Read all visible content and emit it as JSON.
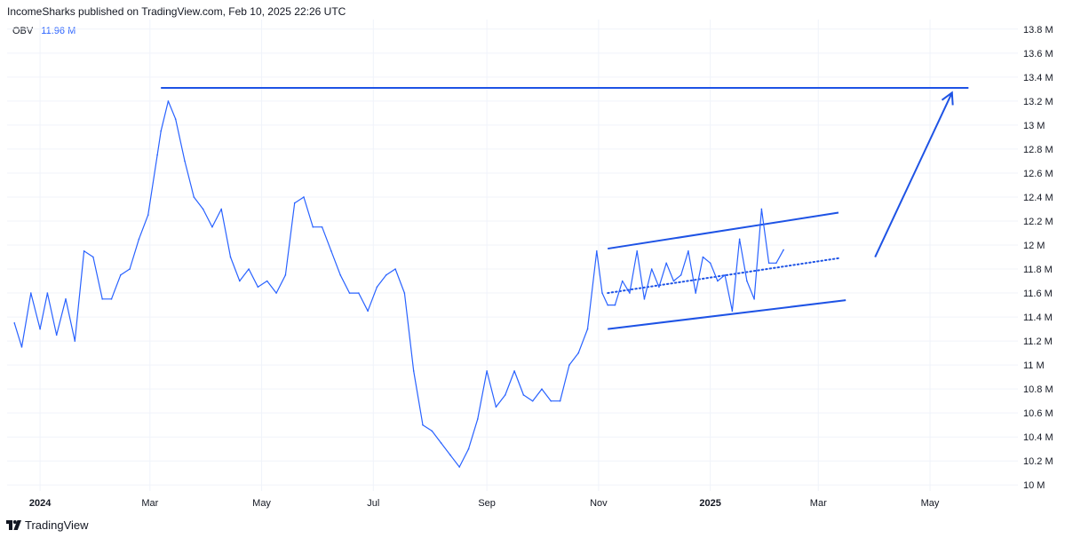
{
  "header": {
    "published_by": "IncomeSharks published on TradingView.com, Feb 10, 2025 22:26 UTC"
  },
  "legend": {
    "name": "OBV",
    "value": "11.96 M"
  },
  "brand": {
    "name": "TradingView"
  },
  "colors": {
    "line": "#2962ff",
    "drawing": "#1e53e5",
    "grid": "#f0f3fa",
    "text": "#131722"
  },
  "chart_data": {
    "type": "line",
    "title": "",
    "series": [
      {
        "name": "OBV",
        "x": [
          "2023-12-18",
          "2023-12-22",
          "2023-12-27",
          "2024-01-01",
          "2024-01-05",
          "2024-01-10",
          "2024-01-15",
          "2024-01-20",
          "2024-01-25",
          "2024-01-30",
          "2024-02-04",
          "2024-02-09",
          "2024-02-14",
          "2024-02-19",
          "2024-02-24",
          "2024-02-29",
          "2024-03-05",
          "2024-03-07",
          "2024-03-11",
          "2024-03-15",
          "2024-03-20",
          "2024-03-25",
          "2024-03-30",
          "2024-04-04",
          "2024-04-09",
          "2024-04-14",
          "2024-04-19",
          "2024-04-24",
          "2024-04-29",
          "2024-05-04",
          "2024-05-09",
          "2024-05-14",
          "2024-05-19",
          "2024-05-24",
          "2024-05-29",
          "2024-06-03",
          "2024-06-08",
          "2024-06-13",
          "2024-06-18",
          "2024-06-23",
          "2024-06-28",
          "2024-07-03",
          "2024-07-08",
          "2024-07-13",
          "2024-07-18",
          "2024-07-23",
          "2024-07-28",
          "2024-08-02",
          "2024-08-07",
          "2024-08-12",
          "2024-08-17",
          "2024-08-22",
          "2024-08-27",
          "2024-09-01",
          "2024-09-06",
          "2024-09-11",
          "2024-09-16",
          "2024-09-21",
          "2024-09-26",
          "2024-10-01",
          "2024-10-06",
          "2024-10-11",
          "2024-10-16",
          "2024-10-21",
          "2024-10-26",
          "2024-10-31",
          "2024-11-03",
          "2024-11-06",
          "2024-11-10",
          "2024-11-14",
          "2024-11-18",
          "2024-11-22",
          "2024-11-26",
          "2024-11-30",
          "2024-12-04",
          "2024-12-08",
          "2024-12-12",
          "2024-12-16",
          "2024-12-20",
          "2024-12-24",
          "2024-12-28",
          "2025-01-01",
          "2025-01-05",
          "2025-01-09",
          "2025-01-13",
          "2025-01-17",
          "2025-01-21",
          "2025-01-25",
          "2025-01-29",
          "2025-02-02",
          "2025-02-06",
          "2025-02-10"
        ],
        "values": [
          11.35,
          11.15,
          11.6,
          11.3,
          11.6,
          11.25,
          11.55,
          11.2,
          11.95,
          11.9,
          11.55,
          11.55,
          11.75,
          11.8,
          12.05,
          12.25,
          12.75,
          12.95,
          13.2,
          13.05,
          12.7,
          12.4,
          12.3,
          12.15,
          12.3,
          11.9,
          11.7,
          11.8,
          11.65,
          11.7,
          11.6,
          11.75,
          12.35,
          12.4,
          12.15,
          12.15,
          11.95,
          11.75,
          11.6,
          11.6,
          11.45,
          11.65,
          11.75,
          11.8,
          11.6,
          10.95,
          10.5,
          10.45,
          10.35,
          10.25,
          10.15,
          10.3,
          10.55,
          10.95,
          10.65,
          10.75,
          10.95,
          10.75,
          10.7,
          10.8,
          10.7,
          10.7,
          11.0,
          11.1,
          11.3,
          11.95,
          11.6,
          11.5,
          11.5,
          11.7,
          11.6,
          11.95,
          11.55,
          11.8,
          11.65,
          11.85,
          11.7,
          11.75,
          11.95,
          11.6,
          11.9,
          11.85,
          11.7,
          11.75,
          11.45,
          12.05,
          11.7,
          11.55,
          12.3,
          11.85,
          11.85,
          11.96
        ]
      }
    ],
    "ylim": [
      9.95,
      13.88
    ],
    "xlim": [
      "2023-12-14",
      "2025-06-18"
    ],
    "y_ticks": [
      "10 M",
      "10.2 M",
      "10.4 M",
      "10.6 M",
      "10.8 M",
      "11 M",
      "11.2 M",
      "11.4 M",
      "11.6 M",
      "11.8 M",
      "12 M",
      "12.2 M",
      "12.4 M",
      "12.6 M",
      "12.8 M",
      "13 M",
      "13.2 M",
      "13.4 M",
      "13.6 M",
      "13.8 M"
    ],
    "y_tick_values": [
      10.0,
      10.2,
      10.4,
      10.6,
      10.8,
      11.0,
      11.2,
      11.4,
      11.6,
      11.8,
      12.0,
      12.2,
      12.4,
      12.6,
      12.8,
      13.0,
      13.2,
      13.4,
      13.6,
      13.8
    ],
    "x_ticks": [
      {
        "label": "2024",
        "date": "2024-01-01",
        "bold": true
      },
      {
        "label": "Mar",
        "date": "2024-03-01",
        "bold": false
      },
      {
        "label": "May",
        "date": "2024-05-01",
        "bold": false
      },
      {
        "label": "Jul",
        "date": "2024-07-01",
        "bold": false
      },
      {
        "label": "Sep",
        "date": "2024-09-01",
        "bold": false
      },
      {
        "label": "Nov",
        "date": "2024-11-01",
        "bold": false
      },
      {
        "label": "2025",
        "date": "2025-01-01",
        "bold": true
      },
      {
        "label": "Mar",
        "date": "2025-03-01",
        "bold": false
      },
      {
        "label": "May",
        "date": "2025-05-01",
        "bold": false
      }
    ],
    "grid": true,
    "drawings": [
      {
        "kind": "horizontal_line",
        "x1": "2024-03-07",
        "x2": "2025-05-22",
        "y": 13.31
      },
      {
        "kind": "channel_upper",
        "x1": "2024-11-06",
        "x2": "2025-03-12",
        "y1": 11.97,
        "y2": 12.27
      },
      {
        "kind": "channel_lower",
        "x1": "2024-11-06",
        "x2": "2025-03-16",
        "y1": 11.3,
        "y2": 11.54
      },
      {
        "kind": "channel_mid_dotted",
        "x1": "2024-11-06",
        "x2": "2025-03-12",
        "y1": 11.6,
        "y2": 11.89
      },
      {
        "kind": "arrow",
        "x1": "2025-04-01",
        "x2": "2025-05-13",
        "y1": 11.9,
        "y2": 13.27
      }
    ]
  }
}
